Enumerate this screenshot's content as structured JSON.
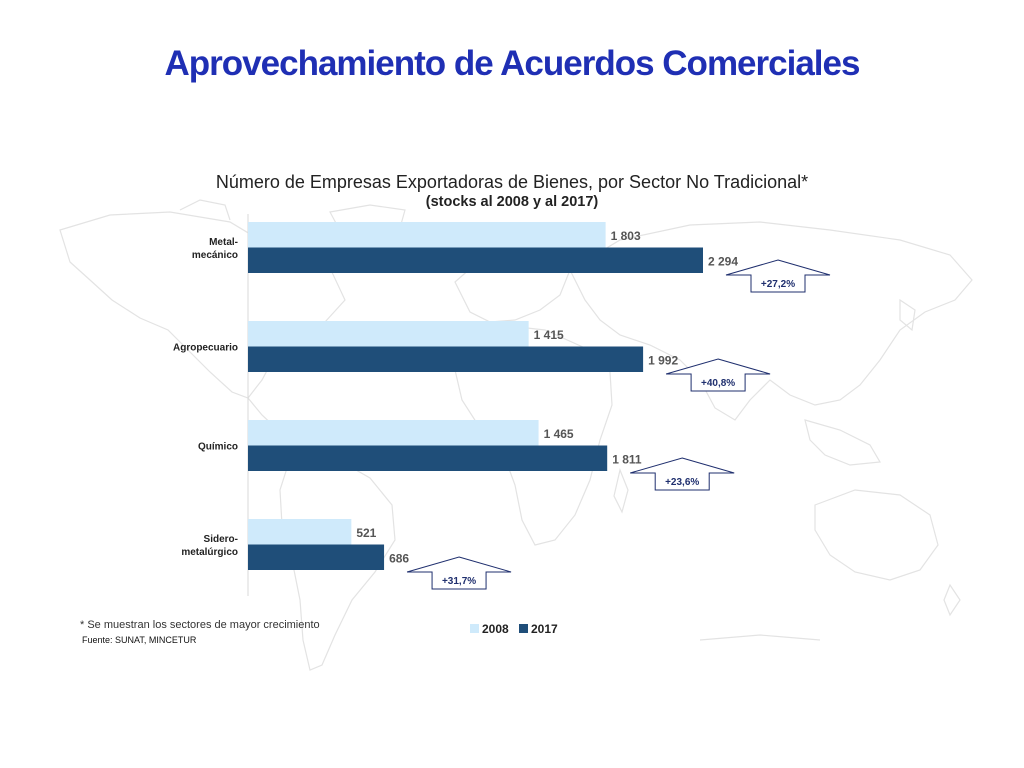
{
  "slide": {
    "title": "Aprovechamiento de Acuerdos Comerciales"
  },
  "colors": {
    "title": "#1f2fb4",
    "series_2008": "#cfeafb",
    "series_2017": "#1f4e79",
    "map": "#e8e8e8"
  },
  "chart_data": {
    "type": "bar",
    "orientation": "horizontal",
    "title": "Número de Empresas Exportadoras de Bienes, por Sector No Tradicional*",
    "subtitle": "(stocks al 2008 y al 2017)",
    "categories": [
      "Metal-\nmecánico",
      "Agropecuario",
      "Químico",
      "Sidero-\nmetalúrgico"
    ],
    "series": [
      {
        "name": "2008",
        "values": [
          1803,
          1415,
          1465,
          521
        ],
        "labels": [
          "1 803",
          "1 415",
          "1 465",
          "521"
        ],
        "color": "#cfeafb"
      },
      {
        "name": "2017",
        "values": [
          2294,
          1992,
          1811,
          686
        ],
        "labels": [
          "2 294",
          "1 992",
          "1 811",
          "686"
        ],
        "color": "#1f4e79"
      }
    ],
    "annotations": [
      "+27,2%",
      "+40,8%",
      "+23,6%",
      "+31,7%"
    ],
    "legend_position": "bottom",
    "grid": false
  },
  "footnote": "* Se muestran los sectores de mayor crecimiento",
  "source": "Fuente: SUNAT, MINCETUR"
}
